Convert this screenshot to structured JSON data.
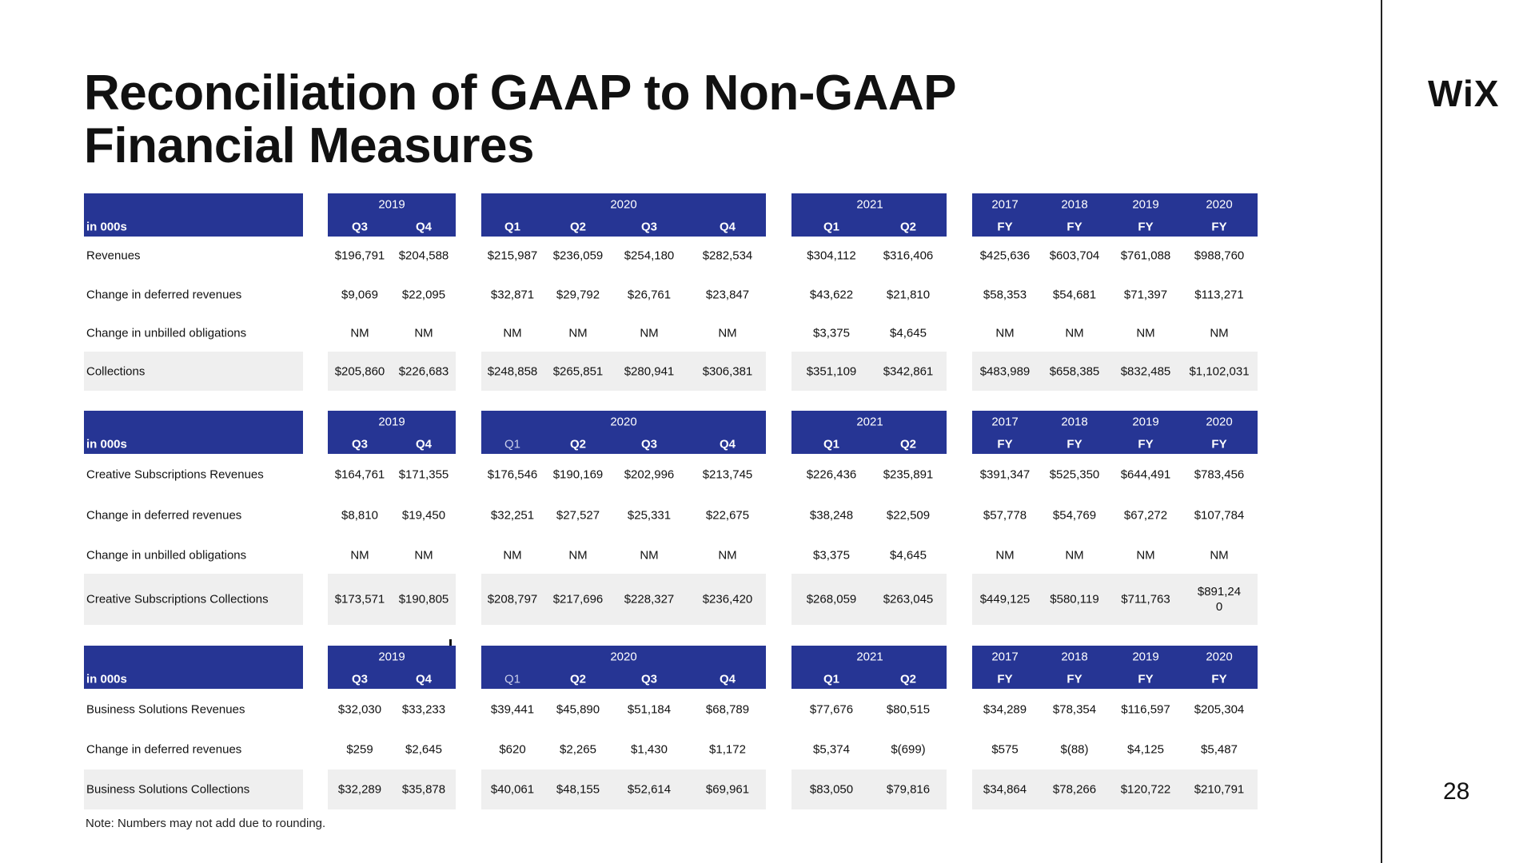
{
  "title_line1": "Reconciliation of GAAP to Non-GAAP",
  "title_line2": "Financial Measures",
  "logo_text": "WiX",
  "page_number": "28",
  "note": "Note: Numbers may not add due to rounding.",
  "colors": {
    "header": "#263594",
    "band": "#efefef",
    "text": "#111111"
  },
  "tables": [
    {
      "unit_label": "in 000s",
      "groups": [
        {
          "years": [
            "2019"
          ],
          "periods": [
            "Q3",
            "Q4"
          ]
        },
        {
          "years": [
            "2020"
          ],
          "periods": [
            "Q1",
            "Q2",
            "Q3",
            "Q4"
          ]
        },
        {
          "years": [
            "2021"
          ],
          "periods": [
            "Q1",
            "Q2"
          ]
        },
        {
          "years": [
            "2017",
            "2018",
            "2019",
            "2020"
          ],
          "periods": [
            "FY",
            "FY",
            "FY",
            "FY"
          ]
        }
      ],
      "rows": [
        {
          "label": "Revenues",
          "values": [
            "$196,791",
            "$204,588",
            "$215,987",
            "$236,059",
            "$254,180",
            "$282,534",
            "$304,112",
            "$316,406",
            "$425,636",
            "$603,704",
            "$761,088",
            "$988,760"
          ]
        },
        {
          "label": "Change in deferred revenues",
          "values": [
            "$9,069",
            "$22,095",
            "$32,871",
            "$29,792",
            "$26,761",
            "$23,847",
            "$43,622",
            "$21,810",
            "$58,353",
            "$54,681",
            "$71,397",
            "$113,271"
          ]
        },
        {
          "label": "Change in unbilled obligations",
          "values": [
            "NM",
            "NM",
            "NM",
            "NM",
            "NM",
            "NM",
            "$3,375",
            "$4,645",
            "NM",
            "NM",
            "NM",
            "NM"
          ]
        },
        {
          "label": "Collections",
          "values": [
            "$205,860",
            "$226,683",
            "$248,858",
            "$265,851",
            "$280,941",
            "$306,381",
            "$351,109",
            "$342,861",
            "$483,989",
            "$658,385",
            "$832,485",
            "$1,102,031"
          ]
        }
      ]
    },
    {
      "unit_label": "in 000s",
      "groups": [
        {
          "years": [
            "2019"
          ],
          "periods": [
            "Q3",
            "Q4"
          ]
        },
        {
          "years": [
            "2020"
          ],
          "periods": [
            "Q1",
            "Q2",
            "Q3",
            "Q4"
          ]
        },
        {
          "years": [
            "2021"
          ],
          "periods": [
            "Q1",
            "Q2"
          ]
        },
        {
          "years": [
            "2017",
            "2018",
            "2019",
            "2020"
          ],
          "periods": [
            "FY",
            "FY",
            "FY",
            "FY"
          ]
        }
      ],
      "rows": [
        {
          "label": "Creative Subscriptions Revenues",
          "values": [
            "$164,761",
            "$171,355",
            "$176,546",
            "$190,169",
            "$202,996",
            "$213,745",
            "$226,436",
            "$235,891",
            "$391,347",
            "$525,350",
            "$644,491",
            "$783,456"
          ]
        },
        {
          "label": "Change in deferred revenues",
          "values": [
            "$8,810",
            "$19,450",
            "$32,251",
            "$27,527",
            "$25,331",
            "$22,675",
            "$38,248",
            "$22,509",
            "$57,778",
            "$54,769",
            "$67,272",
            "$107,784"
          ]
        },
        {
          "label": "Change in unbilled obligations",
          "values": [
            "NM",
            "NM",
            "NM",
            "NM",
            "NM",
            "NM",
            "$3,375",
            "$4,645",
            "NM",
            "NM",
            "NM",
            "NM"
          ]
        },
        {
          "label": "Creative Subscriptions Collections",
          "values": [
            "$173,571",
            "$190,805",
            "$208,797",
            "$217,696",
            "$228,327",
            "$236,420",
            "$268,059",
            "$263,045",
            "$449,125",
            "$580,119",
            "$711,763",
            "$891,24 0"
          ]
        }
      ]
    },
    {
      "unit_label": "in 000s",
      "groups": [
        {
          "years": [
            "2019"
          ],
          "periods": [
            "Q3",
            "Q4"
          ]
        },
        {
          "years": [
            "2020"
          ],
          "periods": [
            "Q1",
            "Q2",
            "Q3",
            "Q4"
          ]
        },
        {
          "years": [
            "2021"
          ],
          "periods": [
            "Q1",
            "Q2"
          ]
        },
        {
          "years": [
            "2017",
            "2018",
            "2019",
            "2020"
          ],
          "periods": [
            "FY",
            "FY",
            "FY",
            "FY"
          ]
        }
      ],
      "rows": [
        {
          "label": "Business Solutions Revenues",
          "values": [
            "$32,030",
            "$33,233",
            "$39,441",
            "$45,890",
            "$51,184",
            "$68,789",
            "$77,676",
            "$80,515",
            "$34,289",
            "$78,354",
            "$116,597",
            "$205,304"
          ]
        },
        {
          "label": "Change in deferred revenues",
          "values": [
            "$259",
            "$2,645",
            "$620",
            "$2,265",
            "$1,430",
            "$1,172",
            "$5,374",
            "$(699)",
            "$575",
            "$(88)",
            "$4,125",
            "$5,487"
          ]
        },
        {
          "label": "Business Solutions Collections",
          "values": [
            "$32,289",
            "$35,878",
            "$40,061",
            "$48,155",
            "$52,614",
            "$69,961",
            "$83,050",
            "$79,816",
            "$34,864",
            "$78,266",
            "$120,722",
            "$210,791"
          ]
        }
      ]
    }
  ]
}
